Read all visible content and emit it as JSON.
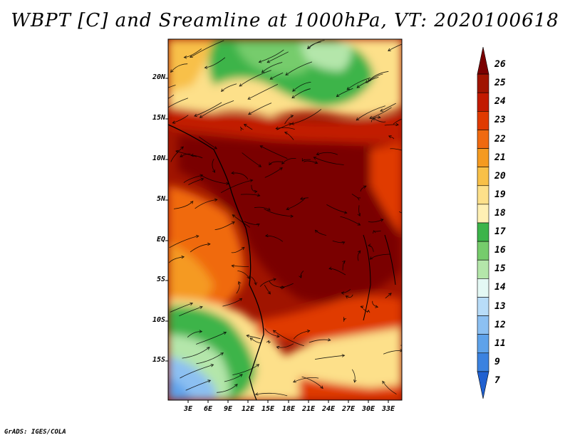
{
  "title": "WBPT [C] and Sreamline at 1000hPa, VT: 2020100618",
  "credit": "GrADS: IGES/COLA",
  "map": {
    "lat_labels": [
      "20N",
      "15N",
      "10N",
      "5N",
      "EQ",
      "5S",
      "10S",
      "15S"
    ],
    "lon_labels": [
      "3E",
      "6E",
      "9E",
      "12E",
      "15E",
      "18E",
      "21E",
      "24E",
      "27E",
      "30E",
      "33E"
    ]
  },
  "colorbar": {
    "levels": [
      "26",
      "25",
      "24",
      "23",
      "22",
      "21",
      "20",
      "19",
      "18",
      "17",
      "16",
      "15",
      "14",
      "13",
      "12",
      "11",
      "9",
      "7"
    ],
    "colors": [
      "#7a0000",
      "#a01400",
      "#c21a00",
      "#e03a00",
      "#f06a10",
      "#f59a20",
      "#f8c048",
      "#fde08a",
      "#fff0b4",
      "#3cb44a",
      "#76cc6c",
      "#b4e6aa",
      "#e4f8f4",
      "#b8dcf8",
      "#8cc0f2",
      "#5ea2ea",
      "#3b82e0",
      "#2060d0"
    ]
  },
  "fields": {
    "regions": [
      {
        "name": "sahara-north",
        "color": "#fff0b4"
      },
      {
        "name": "sahel-green",
        "color": "#3cb44a"
      },
      {
        "name": "tropical-belt",
        "color": "#a01400"
      },
      {
        "name": "ocean-warm",
        "color": "#f06a10"
      },
      {
        "name": "south-green",
        "color": "#76cc6c"
      },
      {
        "name": "south-blue",
        "color": "#8cc0f2"
      }
    ]
  }
}
